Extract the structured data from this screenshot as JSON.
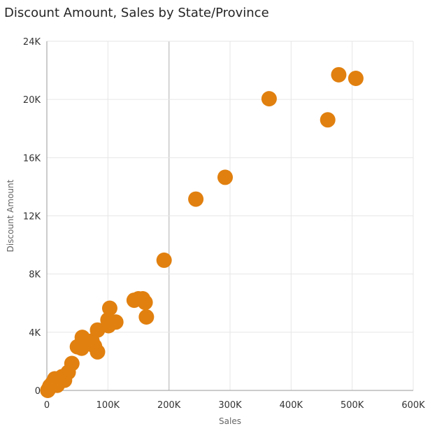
{
  "chart_data": {
    "type": "scatter",
    "title": "Discount Amount, Sales by State/Province",
    "xlabel": "Sales",
    "ylabel": "Discount Amount",
    "xlim": [
      0,
      600000
    ],
    "ylim": [
      0,
      24000
    ],
    "x_ticks": [
      0,
      100000,
      200000,
      300000,
      400000,
      500000,
      600000
    ],
    "x_tick_labels": [
      "0",
      "100K",
      "200K",
      "300K",
      "400K",
      "500K",
      "600K"
    ],
    "y_ticks": [
      0,
      4000,
      8000,
      12000,
      16000,
      20000,
      24000
    ],
    "y_tick_labels": [
      "0",
      "4K",
      "8K",
      "12K",
      "16K",
      "20K",
      "24K"
    ],
    "grid": true,
    "marker_color": "#E1800F",
    "points": [
      {
        "x": 478000,
        "y": 21700
      },
      {
        "x": 506000,
        "y": 21450
      },
      {
        "x": 364000,
        "y": 20050
      },
      {
        "x": 460000,
        "y": 18600
      },
      {
        "x": 292000,
        "y": 14650
      },
      {
        "x": 244000,
        "y": 13150
      },
      {
        "x": 192000,
        "y": 8950
      },
      {
        "x": 103000,
        "y": 5650
      },
      {
        "x": 143000,
        "y": 6200
      },
      {
        "x": 150000,
        "y": 6300
      },
      {
        "x": 157000,
        "y": 6300
      },
      {
        "x": 161000,
        "y": 6050
      },
      {
        "x": 163000,
        "y": 5050
      },
      {
        "x": 100000,
        "y": 4850
      },
      {
        "x": 113000,
        "y": 4700
      },
      {
        "x": 101000,
        "y": 4450
      },
      {
        "x": 83000,
        "y": 4150
      },
      {
        "x": 58000,
        "y": 3650
      },
      {
        "x": 74000,
        "y": 3400
      },
      {
        "x": 78000,
        "y": 3050
      },
      {
        "x": 50000,
        "y": 3000
      },
      {
        "x": 57000,
        "y": 2900
      },
      {
        "x": 83000,
        "y": 2650
      },
      {
        "x": 41000,
        "y": 1850
      },
      {
        "x": 35000,
        "y": 1250
      },
      {
        "x": 25000,
        "y": 950
      },
      {
        "x": 13000,
        "y": 800
      },
      {
        "x": 29000,
        "y": 700
      },
      {
        "x": 20000,
        "y": 550
      },
      {
        "x": 9000,
        "y": 500
      },
      {
        "x": 17000,
        "y": 350
      },
      {
        "x": 5000,
        "y": 300
      },
      {
        "x": 3000,
        "y": 100
      },
      {
        "x": 1500,
        "y": 0
      }
    ]
  }
}
